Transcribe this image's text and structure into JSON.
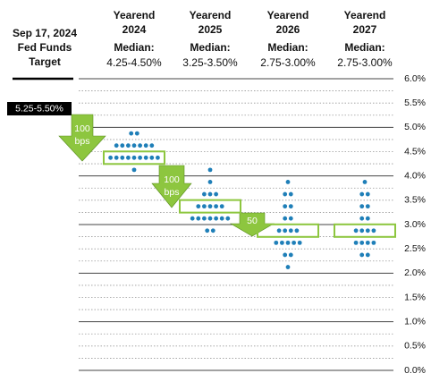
{
  "chart_data": {
    "type": "dot-plot",
    "left_title": [
      "Sep 17, 2024",
      "Fed Funds",
      "Target"
    ],
    "target_label": "5.25-5.50%",
    "annotations": [
      [
        "100",
        "bps"
      ],
      [
        "100",
        "bps"
      ],
      [
        "50"
      ]
    ],
    "dot_color": "#1f7fb8",
    "box_color": "#8dc63f",
    "ylim": [
      0,
      6
    ],
    "yticks": [
      {
        "value": 0,
        "label": "0.0%"
      },
      {
        "value": 0.5,
        "label": "0.5%"
      },
      {
        "value": 1,
        "label": "1.0%"
      },
      {
        "value": 1.5,
        "label": "1.5%"
      },
      {
        "value": 2,
        "label": "2.0%"
      },
      {
        "value": 2.5,
        "label": "2.5%"
      },
      {
        "value": 3,
        "label": "3.0%"
      },
      {
        "value": 3.5,
        "label": "3.5%"
      },
      {
        "value": 4,
        "label": "4.0%"
      },
      {
        "value": 4.5,
        "label": "4.5%"
      },
      {
        "value": 5,
        "label": "5.0%"
      },
      {
        "value": 5.5,
        "label": "5.5%"
      },
      {
        "value": 6,
        "label": "6.0%"
      }
    ],
    "columns": [
      {
        "heading": "Yearend",
        "year": "2024",
        "median_title": "Median:",
        "median_text": "4.25-4.50%",
        "median": 4.375,
        "rates": [
          4.875,
          4.625,
          4.375,
          4.125
        ],
        "counts": [
          2,
          7,
          9,
          1
        ]
      },
      {
        "heading": "Yearend",
        "year": "2025",
        "median_title": "Median:",
        "median_text": "3.25-3.50%",
        "median": 3.375,
        "rates": [
          4.125,
          3.875,
          3.625,
          3.375,
          3.125,
          2.875
        ],
        "counts": [
          1,
          1,
          3,
          5,
          7,
          2
        ]
      },
      {
        "heading": "Yearend",
        "year": "2026",
        "median_title": "Median:",
        "median_text": "2.75-3.00%",
        "median": 2.875,
        "rates": [
          3.875,
          3.625,
          3.375,
          3.125,
          2.875,
          2.625,
          2.375,
          2.125
        ],
        "counts": [
          1,
          2,
          2,
          2,
          4,
          5,
          2,
          1
        ]
      },
      {
        "heading": "Yearend",
        "year": "2027",
        "median_title": "Median:",
        "median_text": "2.75-3.00%",
        "median": 2.875,
        "rates": [
          3.875,
          3.625,
          3.375,
          3.125,
          2.875,
          2.625,
          2.375
        ],
        "counts": [
          1,
          2,
          2,
          2,
          4,
          4,
          2
        ]
      }
    ]
  }
}
